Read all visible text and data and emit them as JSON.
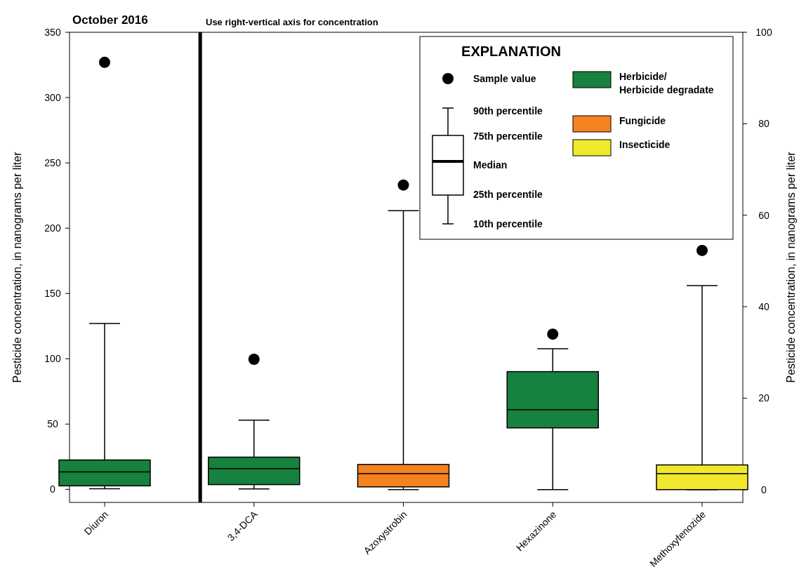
{
  "chart_data": {
    "type": "box",
    "title": "October 2016",
    "ylabel": "Pesticide concentration, in nanograms per liter",
    "y2label": "Pesticide concentration, in nanograms per liter",
    "legend_title": "EXPLANATION",
    "annotations": [
      "Use right-vertical axis for concentration",
      "90th percentile",
      "75th percentile",
      "Median",
      "25th percentile",
      "10th percentile"
    ],
    "categories": [
      "Diuron",
      "3,4-DCA",
      "Azoxystrobin",
      "Hexazinone",
      "Methoxyfenozide"
    ],
    "ylim": [
      -10,
      350
    ],
    "yticks": [
      0,
      50,
      100,
      150,
      200,
      250,
      300,
      350
    ],
    "y2lim": [
      -2.8,
      100
    ],
    "y2ticks": [
      0,
      20,
      40,
      60,
      80,
      100
    ],
    "grid": false,
    "legend": "top right",
    "series": [
      {
        "color": "#17813f",
        "boxes": [
          {
            "low": 0.5,
            "q1": 2.7,
            "median": 13.4,
            "q3": 22.5,
            "high": 127
          },
          null,
          null,
          null,
          null
        ]
      },
      {
        "name": "Herbicide/\nHerbicide degradate",
        "axis": "y2",
        "color": "#17813f",
        "boxes": [
          null,
          {
            "low": 0.15,
            "q1": 1.1,
            "median": 4.6,
            "q3": 7.1,
            "high": 15.2
          },
          null,
          {
            "low": 0,
            "q1": 13.5,
            "median": 17.5,
            "q3": 25.8,
            "high": 30.8
          },
          null
        ]
      },
      {
        "name": "Fungicide",
        "axis": "y2",
        "color": "#f58220",
        "boxes": [
          null,
          null,
          {
            "low": 0,
            "q1": 0.6,
            "median": 3.5,
            "q3": 5.5,
            "high": 61
          },
          null,
          null
        ]
      },
      {
        "name": "Insecticide",
        "axis": "y2",
        "color": "#f0e82c",
        "boxes": [
          null,
          null,
          null,
          null,
          {
            "low": 0,
            "q1": 0,
            "median": 3.5,
            "q3": 5.4,
            "high": 44.6
          }
        ]
      },
      {
        "type": "scatter",
        "color": "#000000",
        "marker": "circle",
        "x": [
          "Diuron"
        ],
        "values": [
          327
        ]
      },
      {
        "type": "scatter",
        "name": "Sample value",
        "axis": "y2",
        "color": "#000000",
        "marker": "circle",
        "x": [
          "3,4-DCA",
          "Azoxystrobin",
          "Hexazinone",
          "Methoxyfenozide"
        ],
        "values": [
          28.5,
          66.6,
          34,
          52.3
        ]
      }
    ]
  }
}
